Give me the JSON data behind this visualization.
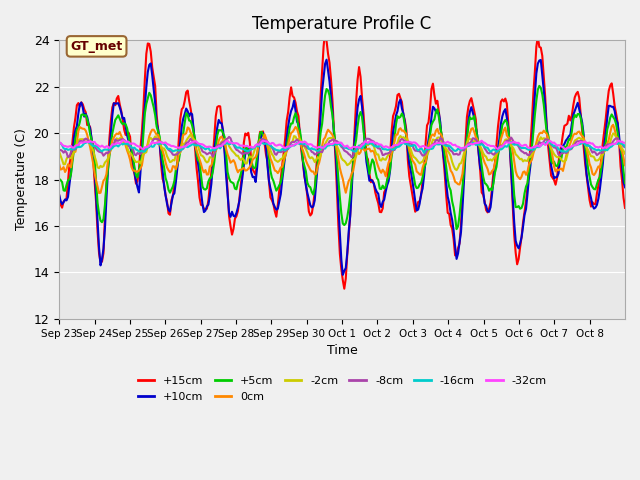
{
  "title": "Temperature Profile C",
  "xlabel": "Time",
  "ylabel": "Temperature (C)",
  "ylim": [
    12,
    24
  ],
  "yticks": [
    12,
    14,
    16,
    18,
    20,
    22,
    24
  ],
  "xtick_labels": [
    "Sep 23",
    "Sep 24",
    "Sep 25",
    "Sep 26",
    "Sep 27",
    "Sep 28",
    "Sep 29",
    "Sep 30",
    "Oct 1",
    "Oct 2",
    "Oct 3",
    "Oct 4",
    "Oct 5",
    "Oct 6",
    "Oct 7",
    "Oct 8"
  ],
  "annotation_text": "GT_met",
  "annotation_bg": "#ffffcc",
  "annotation_border": "#996633",
  "lines": [
    {
      "label": "+15cm",
      "color": "#ff0000",
      "lw": 1.5
    },
    {
      "label": "+10cm",
      "color": "#0000cc",
      "lw": 1.5
    },
    {
      "label": "+5cm",
      "color": "#00cc00",
      "lw": 1.5
    },
    {
      "label": "0cm",
      "color": "#ff8800",
      "lw": 1.5
    },
    {
      "label": "-2cm",
      "color": "#cccc00",
      "lw": 1.5
    },
    {
      "label": "-8cm",
      "color": "#aa44aa",
      "lw": 1.5
    },
    {
      "label": "-16cm",
      "color": "#00cccc",
      "lw": 1.5
    },
    {
      "label": "-32cm",
      "color": "#ff44ff",
      "lw": 1.5
    }
  ]
}
